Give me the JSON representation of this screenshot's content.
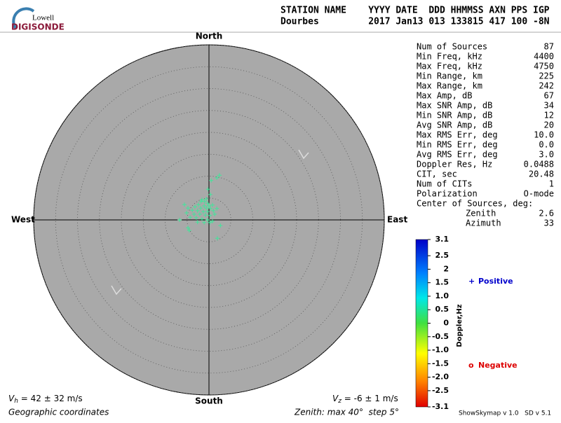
{
  "logo": {
    "top": "Lowell",
    "bottom": "DIGISONDE"
  },
  "header": {
    "line1": "STATION NAME    YYYY DATE  DDD HHMMSS AXN PPS IGP",
    "line2": "Dourbes         2017 Jan13 013 133815 417 100 -8N"
  },
  "stats": {
    "rows": [
      [
        "Num of Sources",
        "87"
      ],
      [
        "Min Freq, kHz",
        "4400"
      ],
      [
        "Max Freq, kHz",
        "4750"
      ],
      [
        "Min Range, km",
        "225"
      ],
      [
        "Max Range, km",
        "242"
      ],
      [
        "Max Amp, dB",
        "67"
      ],
      [
        "Max SNR Amp, dB",
        "34"
      ],
      [
        "Min SNR Amp, dB",
        "12"
      ],
      [
        "Avg SNR Amp, dB",
        "20"
      ],
      [
        "Max RMS Err, deg",
        "10.0"
      ],
      [
        "Min RMS Err, deg",
        "0.0"
      ],
      [
        "Avg RMS Err, deg",
        "3.0"
      ],
      [
        "Doppler Res, Hz",
        "0.0488"
      ],
      [
        "CIT, sec",
        "20.48"
      ],
      [
        "Num of CITs",
        "1"
      ],
      [
        "Polarization",
        "O-mode"
      ]
    ],
    "center_title": "Center of Sources, deg:",
    "center_rows": [
      [
        "Zenith",
        "2.6"
      ],
      [
        "Azimuth",
        "33"
      ]
    ]
  },
  "footer": {
    "vh": {
      "symbol": "V",
      "sub": "h",
      "text": " = 42 ± 32 m/s"
    },
    "vz": {
      "symbol": "V",
      "sub": "z",
      "text": " = -6 ± 1 m/s"
    },
    "coords": "Geographic coordinates",
    "zenith": "Zenith: max 40°  step 5°",
    "version": "ShowSkymap v 1.0   SD v 5.1"
  },
  "chart_data": {
    "type": "polar-scatter",
    "directions": {
      "north": "North",
      "south": "South",
      "east": "East",
      "west": "West"
    },
    "xlim": [
      -40,
      40
    ],
    "ylim": [
      -40,
      40
    ],
    "rticks": [
      5,
      10,
      15,
      20,
      25,
      30,
      35,
      40
    ],
    "x": [
      2.4,
      1.8,
      0.5,
      -0.2,
      0.3,
      -1.6,
      -1.0,
      -0.3,
      -2.4,
      -1.1,
      0.0,
      0.8,
      -3.2,
      -1.9,
      -0.6,
      0.3,
      -5.6,
      -4.8,
      -3.8,
      -2.6,
      -1.3,
      -0.3,
      1.0,
      1.8,
      -3.4,
      -2.1,
      -0.8,
      0.2,
      1.3,
      -5.1,
      -2.9,
      -1.6,
      -0.3,
      0.8,
      -6.7,
      -4.3,
      -2.6,
      -1.1,
      2.6,
      -4.8,
      -4.5,
      0.2,
      1.9,
      -1.8,
      -0.6
    ],
    "series": [
      {
        "name": "Positive",
        "marker": "+",
        "color": "#3fe89a",
        "values": [
          10.2,
          9.6,
          9.0,
          7.0,
          5.8,
          4.6,
          4.2,
          3.8,
          3.5,
          3.2,
          3.2,
          3.4,
          3.0,
          2.7,
          2.7,
          2.6,
          3.5,
          2.7,
          2.2,
          2.1,
          1.9,
          1.9,
          2.1,
          2.6,
          1.3,
          1.3,
          1.1,
          1.0,
          1.3,
          1.6,
          0.5,
          0.2,
          0.0,
          -0.3,
          0.0,
          0.6,
          -0.5,
          -0.6,
          -1.3,
          -1.8,
          -2.4,
          -0.6,
          -4.2,
          4.2,
          4.8
        ]
      }
    ],
    "legend": [
      {
        "marker": "+",
        "name": "Positive",
        "color": "#0000cc"
      },
      {
        "marker": "o",
        "name": "Negative",
        "color": "#dd0000"
      }
    ],
    "colorbar": {
      "title": "Doppler,Hz",
      "lim": [
        -3.1,
        3.1
      ],
      "ticks": [
        3.1,
        2.5,
        2,
        1.5,
        {
          "value": 1,
          "label": "1.0"
        },
        0.5,
        0,
        -0.5,
        {
          "value": -1,
          "label": "-1.0"
        },
        -1.5,
        {
          "value": -2,
          "label": "-2.0"
        },
        -2.5,
        -3.1
      ]
    }
  }
}
